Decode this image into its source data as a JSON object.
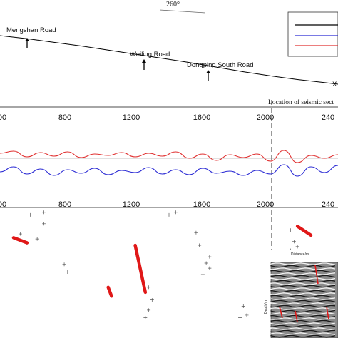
{
  "header": {
    "bearing": "260°",
    "end_marker": "X"
  },
  "profile": {
    "roads": [
      {
        "name": "Mengshan Road"
      },
      {
        "name": "Weiling Road"
      },
      {
        "name": "Dongping South Road"
      }
    ],
    "seismic_label": "Location of seismic sect"
  },
  "legend": {
    "colors": [
      "#000000",
      "#2b2bd4",
      "#e03030"
    ]
  },
  "inset": {
    "xlabel": "Distance/m",
    "ylabel": "Depth/m"
  },
  "chart_data": [
    {
      "type": "line",
      "title": "",
      "x_ticks": [
        "00",
        "800",
        "1200",
        "1600",
        "2000",
        "240"
      ],
      "x": [
        0,
        200,
        400,
        600,
        800,
        1000,
        1200,
        1400,
        1600,
        1800,
        2000,
        2200,
        2400,
        2500
      ],
      "series": [
        {
          "color": "#000000",
          "values": [
            0.0,
            -0.6,
            -1.3,
            -2.0,
            -2.8,
            -3.6,
            -4.4,
            -5.2,
            -6.1,
            -7.0,
            -7.8,
            -8.5,
            -9.1,
            -9.4
          ]
        }
      ]
    },
    {
      "type": "line",
      "x_ticks": [
        "00",
        "800",
        "1200",
        "1600",
        "2000",
        "240"
      ],
      "reference_line": 0,
      "x": [
        0,
        100,
        200,
        300,
        400,
        500,
        600,
        700,
        800,
        900,
        1000,
        1100,
        1200,
        1300,
        1400,
        1500,
        1600,
        1700,
        1800,
        1900,
        2000,
        2100,
        2200,
        2300,
        2400,
        2500
      ],
      "series": [
        {
          "color": "#e03030",
          "values": [
            0.7,
            1.0,
            0.2,
            0.8,
            0.3,
            0.9,
            0.1,
            0.6,
            0.4,
            0.8,
            0.2,
            0.7,
            0.3,
            0.9,
            0.0,
            0.6,
            -0.3,
            0.5,
            0.1,
            0.6,
            -0.4,
            1.1,
            -0.6,
            0.4,
            0.0,
            0.5
          ]
        },
        {
          "color": "#2b2bd4",
          "values": [
            -1.9,
            -1.2,
            -2.2,
            -1.5,
            -2.4,
            -1.6,
            -2.1,
            -1.4,
            -2.3,
            -1.7,
            -2.0,
            -1.3,
            -2.2,
            -1.6,
            -2.3,
            -1.4,
            -2.1,
            -1.8,
            -2.4,
            -1.7,
            -2.2,
            -0.9,
            -2.5,
            -1.2,
            -2.0,
            -1.0
          ]
        }
      ]
    },
    {
      "type": "scatter",
      "x_ticks": [
        "00",
        "800",
        "1200",
        "1600",
        "2000",
        "240"
      ],
      "faults": [
        {
          "x1": 0.04,
          "y1": 0.21,
          "x2": 0.08,
          "y2": 0.25
        },
        {
          "x1": 0.32,
          "y1": 0.6,
          "x2": 0.33,
          "y2": 0.67
        },
        {
          "x1": 0.4,
          "y1": 0.27,
          "x2": 0.43,
          "y2": 0.64
        },
        {
          "x1": 0.88,
          "y1": 0.12,
          "x2": 0.92,
          "y2": 0.19
        }
      ],
      "points": [
        [
          0.13,
          0.01
        ],
        [
          0.09,
          0.03
        ],
        [
          0.13,
          0.1
        ],
        [
          0.11,
          0.22
        ],
        [
          0.08,
          0.25
        ],
        [
          0.06,
          0.18
        ],
        [
          0.52,
          0.01
        ],
        [
          0.5,
          0.03
        ],
        [
          0.19,
          0.42
        ],
        [
          0.21,
          0.44
        ],
        [
          0.2,
          0.48
        ],
        [
          0.58,
          0.17
        ],
        [
          0.59,
          0.27
        ],
        [
          0.62,
          0.36
        ],
        [
          0.61,
          0.41
        ],
        [
          0.62,
          0.45
        ],
        [
          0.6,
          0.5
        ],
        [
          0.44,
          0.6
        ],
        [
          0.45,
          0.7
        ],
        [
          0.44,
          0.78
        ],
        [
          0.43,
          0.84
        ],
        [
          0.72,
          0.75
        ],
        [
          0.73,
          0.82
        ],
        [
          0.71,
          0.84
        ],
        [
          0.86,
          0.15
        ],
        [
          0.87,
          0.24
        ],
        [
          0.86,
          0.31
        ],
        [
          0.88,
          0.28
        ]
      ]
    }
  ]
}
